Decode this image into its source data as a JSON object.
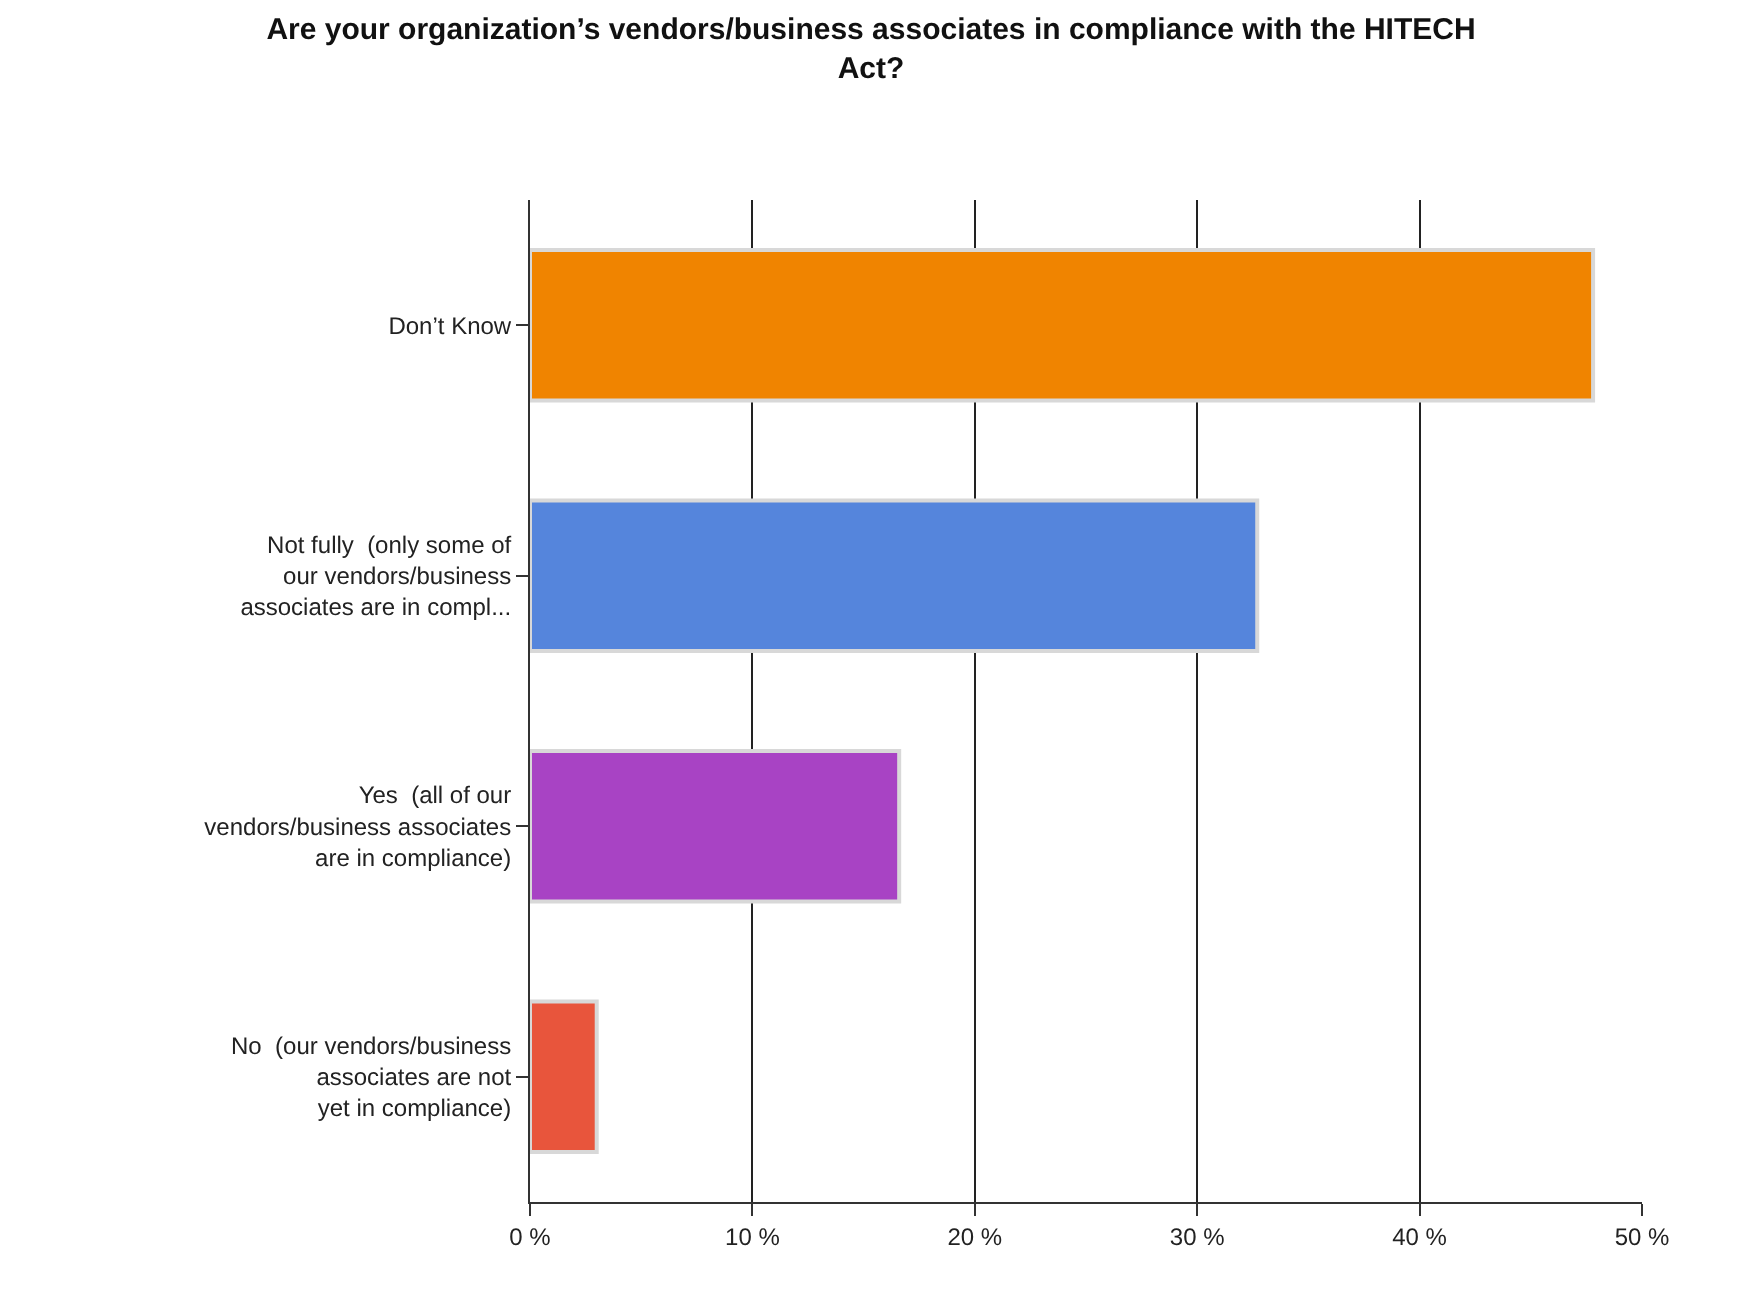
{
  "chart_data": {
    "type": "bar",
    "orientation": "horizontal",
    "title": "Are your organization’s vendors/business associates in compliance with the HITECH\nAct?",
    "categories": [
      "Don’t Know",
      "Not fully  (only some of\nour vendors/business\nassociates are in compl...",
      "Yes  (all of our\nvendors/business associates\nare in compliance)",
      "No  (our vendors/business\nassociates are not\nyet in compliance)"
    ],
    "values": [
      47.8,
      32.7,
      16.6,
      3.0
    ],
    "colors": [
      "#f08400",
      "#5585dc",
      "#a843c4",
      "#e8553c"
    ],
    "xlim": [
      0,
      50
    ],
    "xticks": [
      {
        "value": 0,
        "label": "0 %"
      },
      {
        "value": 10,
        "label": "10 %"
      },
      {
        "value": 20,
        "label": "20 %"
      },
      {
        "value": 30,
        "label": "30 %"
      },
      {
        "value": 40,
        "label": "40 %"
      },
      {
        "value": 50,
        "label": "50 %"
      }
    ],
    "grid": "x"
  }
}
